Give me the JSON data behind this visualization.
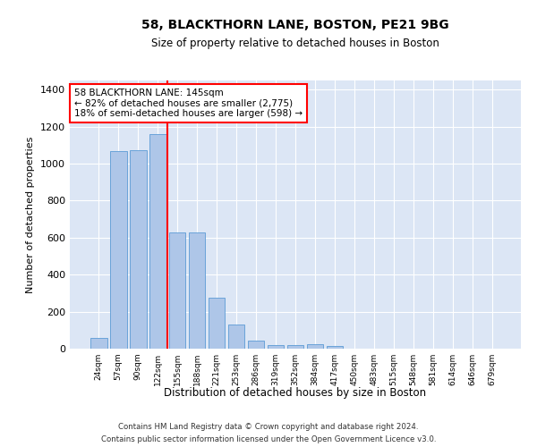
{
  "title1": "58, BLACKTHORN LANE, BOSTON, PE21 9BG",
  "title2": "Size of property relative to detached houses in Boston",
  "xlabel": "Distribution of detached houses by size in Boston",
  "ylabel": "Number of detached properties",
  "bar_categories": [
    "24sqm",
    "57sqm",
    "90sqm",
    "122sqm",
    "155sqm",
    "188sqm",
    "221sqm",
    "253sqm",
    "286sqm",
    "319sqm",
    "352sqm",
    "384sqm",
    "417sqm",
    "450sqm",
    "483sqm",
    "515sqm",
    "548sqm",
    "581sqm",
    "614sqm",
    "646sqm",
    "679sqm"
  ],
  "bar_values": [
    60,
    1070,
    1075,
    1160,
    630,
    630,
    275,
    130,
    45,
    20,
    20,
    25,
    15,
    0,
    0,
    0,
    0,
    0,
    0,
    0,
    0
  ],
  "bar_color": "#aec6e8",
  "bar_edgecolor": "#5b9bd5",
  "vline_color": "red",
  "vline_pos": 3.5,
  "annotation_text": "58 BLACKTHORN LANE: 145sqm\n← 82% of detached houses are smaller (2,775)\n18% of semi-detached houses are larger (598) →",
  "ylim": [
    0,
    1450
  ],
  "yticks": [
    0,
    200,
    400,
    600,
    800,
    1000,
    1200,
    1400
  ],
  "footer_line1": "Contains HM Land Registry data © Crown copyright and database right 2024.",
  "footer_line2": "Contains public sector information licensed under the Open Government Licence v3.0.",
  "plot_bg_color": "#dce6f5",
  "grid_color": "white"
}
